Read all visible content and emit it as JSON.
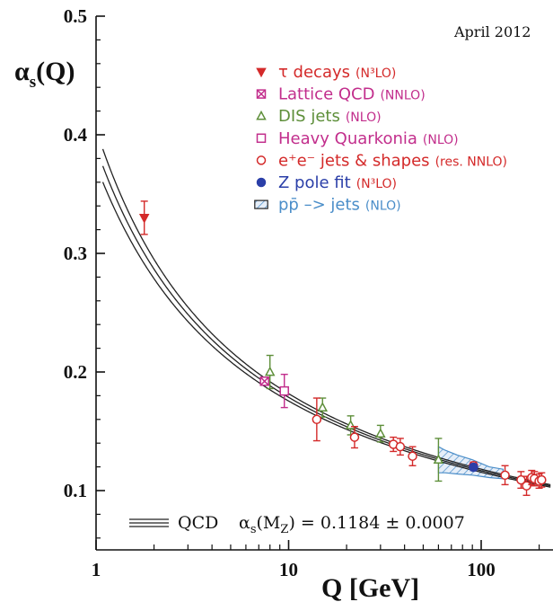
{
  "chart_data": {
    "type": "scatter",
    "annotation_date": "April 2012",
    "ylabel": "α",
    "ylabel_sub": "s",
    "ylabel_arg": "(Q)",
    "xlabel": "Q [GeV]",
    "x_scale": "log",
    "xlim": [
      1,
      200
    ],
    "ylim": [
      0.05,
      0.5
    ],
    "x_ticks": [
      {
        "value": 1,
        "label": "1"
      },
      {
        "value": 10,
        "label": "10"
      },
      {
        "value": 100,
        "label": "100"
      }
    ],
    "y_ticks": [
      {
        "value": 0.1,
        "label": "0.1"
      },
      {
        "value": 0.2,
        "label": "0.2"
      },
      {
        "value": 0.3,
        "label": "0.3"
      },
      {
        "value": 0.4,
        "label": "0.4"
      },
      {
        "value": 0.5,
        "label": "0.5"
      }
    ],
    "grid": false,
    "legend_position": "top-right",
    "qcd_curve": {
      "name": "QCD",
      "alpha_mz": 0.1184,
      "alpha_mz_uncertainty": 0.0007,
      "mz": 91.19,
      "label_prefix": "α",
      "label_sub": "s",
      "label_arg": "(M",
      "label_arg_sub": "Z",
      "label_suffix": ") = 0.1184 ± 0.0007"
    },
    "series": [
      {
        "name": "τ decays",
        "order": "(N³LO)",
        "marker": "triangle-down",
        "filled": true,
        "color": "#d42a2a",
        "order_color": "#d42a2a",
        "points": [
          {
            "x": 1.78,
            "y": 0.33,
            "err": 0.014
          }
        ]
      },
      {
        "name": "Lattice QCD",
        "order": "(NNLO)",
        "marker": "square-x",
        "filled": false,
        "color": "#c22e8c",
        "order_color": "#c22e8c",
        "points": [
          {
            "x": 7.5,
            "y": 0.1922,
            "err": 0.0015
          }
        ]
      },
      {
        "name": "DIS jets",
        "order": "(NLO)",
        "marker": "triangle-up",
        "filled": false,
        "color": "#5e8f3a",
        "order_color": "#c22e8c",
        "points": [
          {
            "x": 8.0,
            "y": 0.2,
            "err": 0.014
          },
          {
            "x": 15.0,
            "y": 0.17,
            "err": 0.008
          },
          {
            "x": 21.0,
            "y": 0.155,
            "err": 0.008
          },
          {
            "x": 30.0,
            "y": 0.148,
            "err": 0.007
          },
          {
            "x": 60.0,
            "y": 0.126,
            "err": 0.018
          }
        ]
      },
      {
        "name": "Heavy Quarkonia",
        "order": "(NLO)",
        "marker": "square",
        "filled": false,
        "color": "#c22e8c",
        "order_color": "#c22e8c",
        "points": [
          {
            "x": 9.5,
            "y": 0.184,
            "err": 0.014
          }
        ]
      },
      {
        "name": "e⁺e⁻ jets & shapes",
        "order": "(res. NNLO)",
        "marker": "circle",
        "filled": false,
        "color": "#d42a2a",
        "order_color": "#d42a2a",
        "points": [
          {
            "x": 14.0,
            "y": 0.16,
            "err": 0.018
          },
          {
            "x": 22.0,
            "y": 0.145,
            "err": 0.009
          },
          {
            "x": 35.0,
            "y": 0.139,
            "err": 0.006
          },
          {
            "x": 38.0,
            "y": 0.137,
            "err": 0.007
          },
          {
            "x": 44.0,
            "y": 0.129,
            "err": 0.008
          },
          {
            "x": 91.2,
            "y": 0.121,
            "err": 0.003
          },
          {
            "x": 133.0,
            "y": 0.113,
            "err": 0.008
          },
          {
            "x": 161.0,
            "y": 0.109,
            "err": 0.007
          },
          {
            "x": 172.0,
            "y": 0.104,
            "err": 0.008
          },
          {
            "x": 183.0,
            "y": 0.111,
            "err": 0.006
          },
          {
            "x": 189.0,
            "y": 0.11,
            "err": 0.006
          },
          {
            "x": 200.0,
            "y": 0.108,
            "err": 0.006
          },
          {
            "x": 206.0,
            "y": 0.109,
            "err": 0.006
          }
        ]
      },
      {
        "name": "Z pole fit",
        "order": "(N³LO)",
        "marker": "circle",
        "filled": true,
        "color": "#2b3fa8",
        "order_color": "#d42a2a",
        "points": [
          {
            "x": 91.19,
            "y": 0.1197,
            "err": 0.0028
          }
        ]
      },
      {
        "name": "pp̄ –> jets",
        "order": "(NLO)",
        "marker": "hatched-box",
        "filled": false,
        "color": "#4b8ec9",
        "order_color": "#4b8ec9",
        "points": [],
        "band": {
          "x": [
            60,
            65,
            75,
            90,
            110,
            130
          ],
          "lo": [
            0.115,
            0.115,
            0.114,
            0.113,
            0.111,
            0.11
          ],
          "hi": [
            0.137,
            0.134,
            0.13,
            0.126,
            0.12,
            0.118
          ]
        }
      }
    ]
  }
}
